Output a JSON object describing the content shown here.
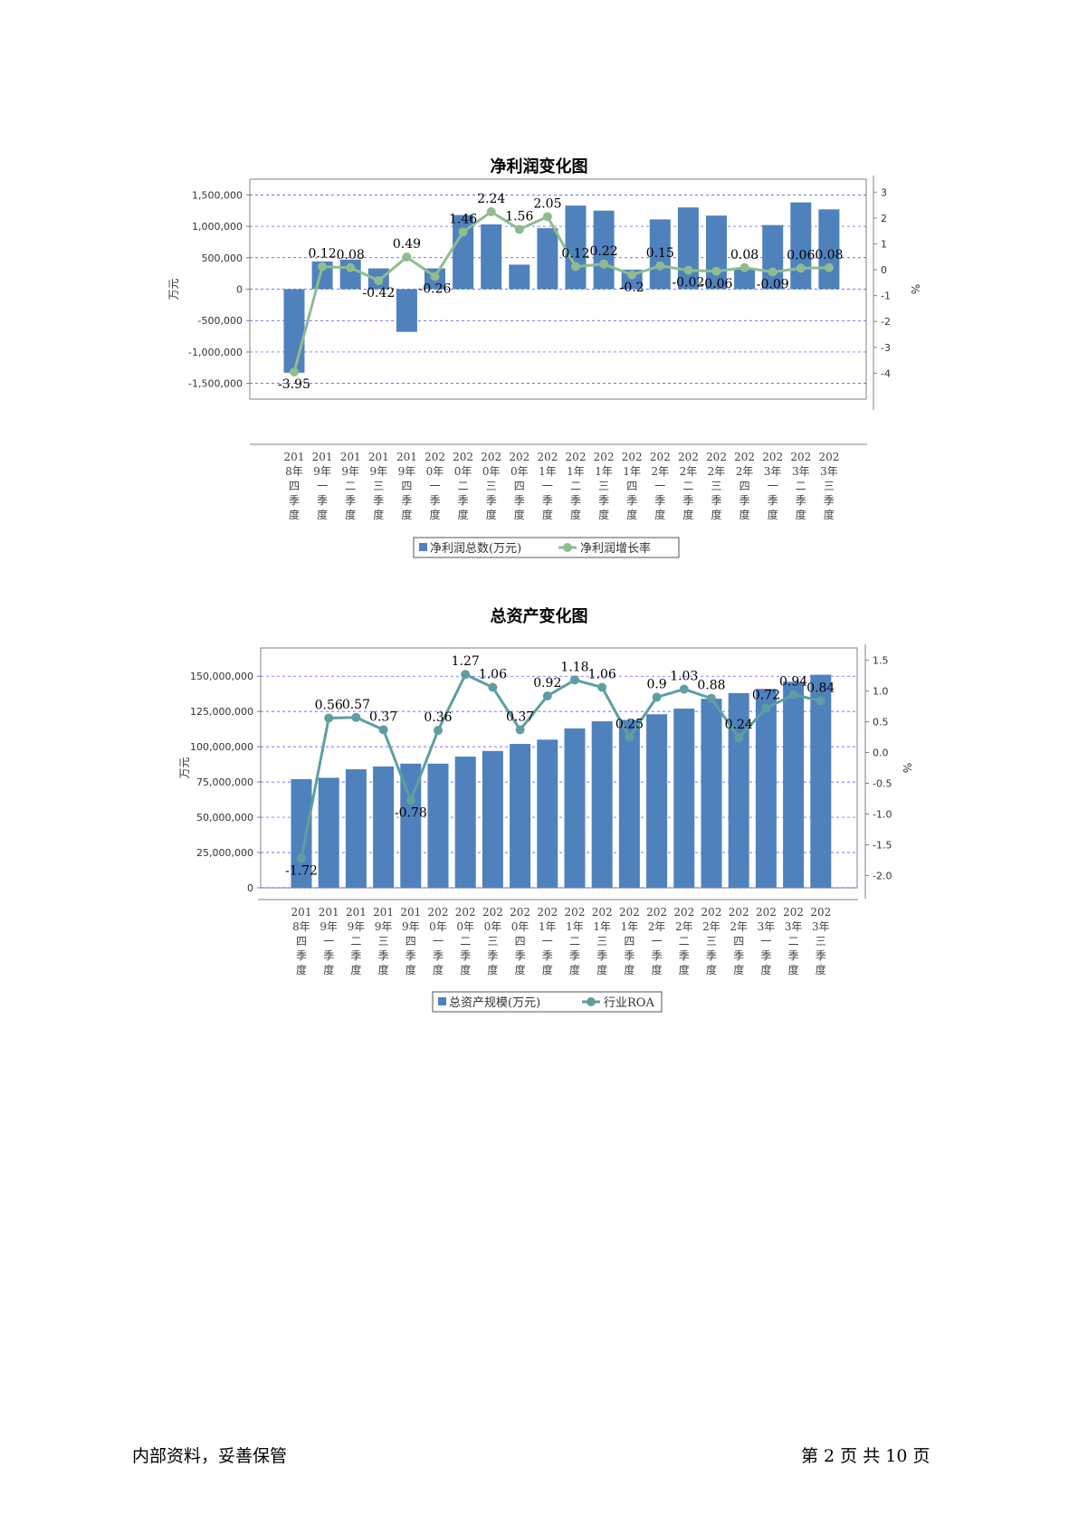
{
  "footer": {
    "left": "内部资料，妥善保管",
    "right": "第 2 页   共 10 页"
  },
  "colors": {
    "bar": "#4f81bd",
    "line1": "#8fbc8f",
    "line2": "#5f9ea0",
    "grid": "#4040ff"
  },
  "chart_data": [
    {
      "type": "bar",
      "title": "净利润变化图",
      "ylabel": "万元",
      "y2label": "%",
      "ylim": [
        -1750000,
        1750000
      ],
      "y2lim": [
        -5,
        3.5
      ],
      "yticks": [
        -1500000,
        -1000000,
        -500000,
        0,
        500000,
        1000000,
        1500000
      ],
      "ytick_labels": [
        "-1,500,000",
        "-1,000,000",
        "-500,000",
        "0",
        "500,000",
        "1,000,000",
        "1,500,000"
      ],
      "y2ticks": [
        -4,
        -3,
        -2,
        -1,
        0,
        1,
        2,
        3
      ],
      "y2tick_labels": [
        "-4",
        "-3",
        "-2",
        "-1",
        "0",
        "1",
        "2",
        "3"
      ],
      "grid": true,
      "legend_position": "bottom",
      "categories": [
        "2018年四季度",
        "2019年一季度",
        "2019年二季度",
        "2019年三季度",
        "2019年四季度",
        "2020年一季度",
        "2020年二季度",
        "2020年三季度",
        "2020年四季度",
        "2021年一季度",
        "2021年二季度",
        "2021年三季度",
        "2021年四季度",
        "2022年一季度",
        "2022年二季度",
        "2022年三季度",
        "2022年四季度",
        "2023年一季度",
        "2023年二季度",
        "2023年三季度"
      ],
      "category_lines": [
        [
          "201",
          "8年",
          "四",
          "季",
          "度"
        ],
        [
          "201",
          "9年",
          "一",
          "季",
          "度"
        ],
        [
          "201",
          "9年",
          "二",
          "季",
          "度"
        ],
        [
          "201",
          "9年",
          "三",
          "季",
          "度"
        ],
        [
          "201",
          "9年",
          "四",
          "季",
          "度"
        ],
        [
          "202",
          "0年",
          "一",
          "季",
          "度"
        ],
        [
          "202",
          "0年",
          "二",
          "季",
          "度"
        ],
        [
          "202",
          "0年",
          "三",
          "季",
          "度"
        ],
        [
          "202",
          "0年",
          "四",
          "季",
          "度"
        ],
        [
          "202",
          "1年",
          "一",
          "季",
          "度"
        ],
        [
          "202",
          "1年",
          "二",
          "季",
          "度"
        ],
        [
          "202",
          "1年",
          "三",
          "季",
          "度"
        ],
        [
          "202",
          "1年",
          "四",
          "季",
          "度"
        ],
        [
          "202",
          "2年",
          "一",
          "季",
          "度"
        ],
        [
          "202",
          "2年",
          "二",
          "季",
          "度"
        ],
        [
          "202",
          "2年",
          "三",
          "季",
          "度"
        ],
        [
          "202",
          "2年",
          "四",
          "季",
          "度"
        ],
        [
          "202",
          "3年",
          "一",
          "季",
          "度"
        ],
        [
          "202",
          "3年",
          "二",
          "季",
          "度"
        ],
        [
          "202",
          "3年",
          "三",
          "季",
          "度"
        ]
      ],
      "series": [
        {
          "name": "净利润总数(万元)",
          "kind": "bar",
          "values": [
            -1330000,
            440000,
            470000,
            330000,
            -680000,
            330000,
            1180000,
            1030000,
            390000,
            970000,
            1330000,
            1250000,
            310000,
            1110000,
            1300000,
            1170000,
            330000,
            1020000,
            1380000,
            1270000
          ]
        },
        {
          "name": "净利润增长率",
          "kind": "line",
          "axis": "right",
          "values": [
            -3.95,
            0.12,
            0.08,
            -0.42,
            0.49,
            -0.26,
            1.46,
            2.24,
            1.56,
            2.05,
            0.12,
            0.22,
            -0.2,
            0.15,
            -0.02,
            -0.06,
            0.08,
            -0.09,
            0.06,
            0.08
          ],
          "labels": [
            "-3.95",
            "0.12",
            "0.08",
            "-0.42",
            "0.49",
            "-0.26",
            "1.46",
            "2.24",
            "1.56",
            "2.05",
            "0.12",
            "0.22",
            "-0.2",
            "0.15",
            "-0.02",
            "-0.06",
            "0.08",
            "-0.09",
            "0.06",
            "0.08"
          ]
        }
      ]
    },
    {
      "type": "bar",
      "title": "总资产变化图",
      "ylabel": "万元",
      "y2label": "%",
      "ylim": [
        0,
        170000000
      ],
      "y2lim": [
        -2.2,
        1.7
      ],
      "yticks": [
        0,
        25000000,
        50000000,
        75000000,
        100000000,
        125000000,
        150000000
      ],
      "ytick_labels": [
        "0",
        "25,000,000",
        "50,000,000",
        "75,000,000",
        "100,000,000",
        "125,000,000",
        "150,000,000"
      ],
      "y2ticks": [
        -2.0,
        -1.5,
        -1.0,
        -0.5,
        0.0,
        0.5,
        1.0,
        1.5
      ],
      "y2tick_labels": [
        "-2.0",
        "-1.5",
        "-1.0",
        "-0.5",
        "0.0",
        "0.5",
        "1.0",
        "1.5"
      ],
      "grid": true,
      "legend_position": "bottom",
      "categories": [
        "2018年四季度",
        "2019年一季度",
        "2019年二季度",
        "2019年三季度",
        "2019年四季度",
        "2020年一季度",
        "2020年二季度",
        "2020年三季度",
        "2020年四季度",
        "2021年一季度",
        "2021年二季度",
        "2021年三季度",
        "2021年四季度",
        "2022年一季度",
        "2022年二季度",
        "2022年三季度",
        "2022年四季度",
        "2023年一季度",
        "2023年二季度",
        "2023年三季度"
      ],
      "category_lines": [
        [
          "201",
          "8年",
          "四",
          "季",
          "度"
        ],
        [
          "201",
          "9年",
          "一",
          "季",
          "度"
        ],
        [
          "201",
          "9年",
          "二",
          "季",
          "度"
        ],
        [
          "201",
          "9年",
          "三",
          "季",
          "度"
        ],
        [
          "201",
          "9年",
          "四",
          "季",
          "度"
        ],
        [
          "202",
          "0年",
          "一",
          "季",
          "度"
        ],
        [
          "202",
          "0年",
          "二",
          "季",
          "度"
        ],
        [
          "202",
          "0年",
          "三",
          "季",
          "度"
        ],
        [
          "202",
          "0年",
          "四",
          "季",
          "度"
        ],
        [
          "202",
          "1年",
          "一",
          "季",
          "度"
        ],
        [
          "202",
          "1年",
          "二",
          "季",
          "度"
        ],
        [
          "202",
          "1年",
          "三",
          "季",
          "度"
        ],
        [
          "202",
          "1年",
          "四",
          "季",
          "度"
        ],
        [
          "202",
          "2年",
          "一",
          "季",
          "度"
        ],
        [
          "202",
          "2年",
          "二",
          "季",
          "度"
        ],
        [
          "202",
          "2年",
          "三",
          "季",
          "度"
        ],
        [
          "202",
          "2年",
          "四",
          "季",
          "度"
        ],
        [
          "202",
          "3年",
          "一",
          "季",
          "度"
        ],
        [
          "202",
          "3年",
          "二",
          "季",
          "度"
        ],
        [
          "202",
          "3年",
          "三",
          "季",
          "度"
        ]
      ],
      "series": [
        {
          "name": "总资产规模(万元)",
          "kind": "bar",
          "values": [
            77000000,
            78000000,
            84000000,
            86000000,
            88000000,
            88000000,
            93000000,
            97000000,
            102000000,
            105000000,
            113000000,
            118000000,
            119000000,
            123000000,
            127000000,
            134000000,
            138000000,
            141000000,
            146000000,
            151000000
          ]
        },
        {
          "name": "行业ROA",
          "kind": "line",
          "axis": "right",
          "values": [
            -1.72,
            0.56,
            0.57,
            0.37,
            -0.78,
            0.36,
            1.27,
            1.06,
            0.37,
            0.92,
            1.18,
            1.06,
            0.25,
            0.9,
            1.03,
            0.88,
            0.24,
            0.72,
            0.94,
            0.84
          ],
          "labels": [
            "-1.72",
            "0.56",
            "0.57",
            "0.37",
            "-0.78",
            "0.36",
            "1.27",
            "1.06",
            "0.37",
            "0.92",
            "1.18",
            "1.06",
            "0.25",
            "0.9",
            "1.03",
            "0.88",
            "0.24",
            "0.72",
            "0.94",
            "0.84"
          ]
        }
      ]
    }
  ]
}
